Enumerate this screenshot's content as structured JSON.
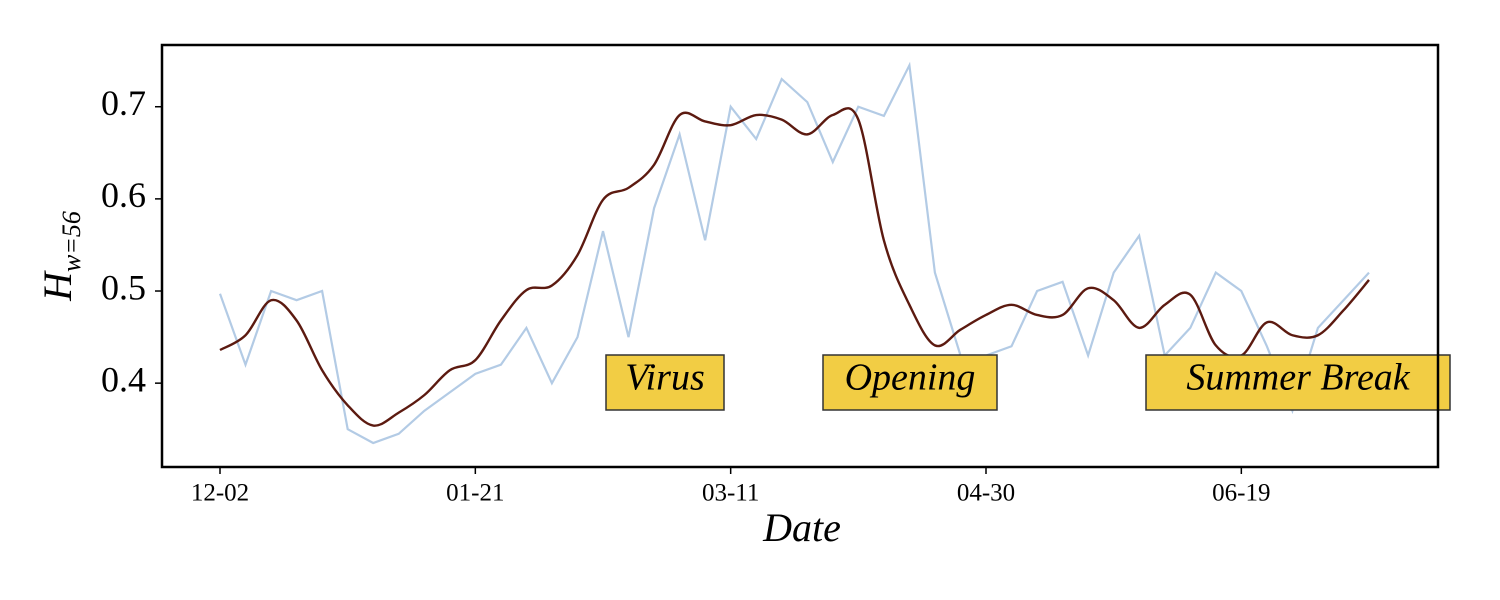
{
  "chart_data": {
    "type": "line",
    "xlabel": "Date",
    "ylabel": "H",
    "ylabel_sub": "w=56",
    "x": [
      "12-02",
      "12-07",
      "12-12",
      "12-17",
      "12-22",
      "12-27",
      "01-01",
      "01-06",
      "01-11",
      "01-16",
      "01-21",
      "01-26",
      "01-31",
      "02-05",
      "02-10",
      "02-15",
      "02-20",
      "02-25",
      "03-01",
      "03-06",
      "03-11",
      "03-16",
      "03-21",
      "03-26",
      "03-31",
      "04-05",
      "04-10",
      "04-15",
      "04-20",
      "04-25",
      "04-30",
      "05-05",
      "05-10",
      "05-15",
      "05-20",
      "05-25",
      "05-30",
      "06-04",
      "06-09",
      "06-14",
      "06-19",
      "06-24",
      "06-29",
      "07-04",
      "07-09",
      "07-14"
    ],
    "xticks": [
      "12-02",
      "01-21",
      "03-11",
      "04-30",
      "06-19"
    ],
    "series": [
      {
        "color": "#b3cbe5",
        "values": [
          0.497,
          0.42,
          0.5,
          0.49,
          0.5,
          0.35,
          0.335,
          0.345,
          0.37,
          0.39,
          0.41,
          0.42,
          0.46,
          0.4,
          0.45,
          0.565,
          0.45,
          0.59,
          0.67,
          0.555,
          0.7,
          0.665,
          0.73,
          0.705,
          0.64,
          0.7,
          0.69,
          0.745,
          0.52,
          0.43,
          0.43,
          0.44,
          0.5,
          0.51,
          0.43,
          0.52,
          0.56,
          0.43,
          0.46,
          0.52,
          0.5,
          0.44,
          0.37,
          0.46,
          0.49,
          0.52
        ]
      },
      {
        "color": "#5c1a10",
        "values": [
          0.436,
          0.452,
          0.49,
          0.468,
          0.414,
          0.376,
          0.354,
          0.368,
          0.387,
          0.414,
          0.425,
          0.468,
          0.501,
          0.506,
          0.539,
          0.599,
          0.612,
          0.637,
          0.691,
          0.684,
          0.68,
          0.691,
          0.686,
          0.67,
          0.691,
          0.686,
          0.555,
          0.485,
          0.441,
          0.458,
          0.474,
          0.485,
          0.474,
          0.474,
          0.503,
          0.49,
          0.46,
          0.485,
          0.496,
          0.441,
          0.43,
          0.466,
          0.452,
          0.452,
          0.479,
          0.512
        ]
      }
    ],
    "ylim": [
      0.309,
      0.767
    ],
    "yticks": [
      0.4,
      0.5,
      0.6,
      0.7
    ],
    "grid": false,
    "annotations": [
      "Virus",
      "Opening",
      "Summer Break"
    ],
    "annotation_color": "#f2cd44"
  }
}
